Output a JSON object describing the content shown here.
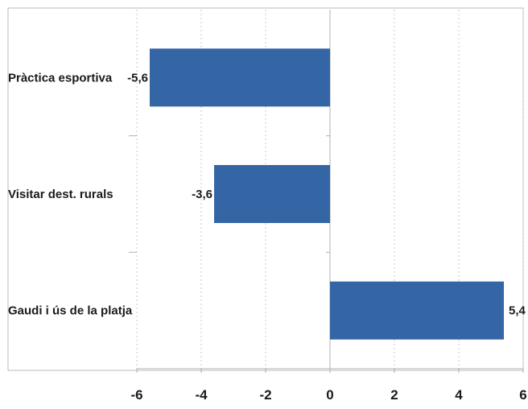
{
  "chart_data": {
    "type": "bar",
    "orientation": "horizontal",
    "categories": [
      "Pràctica esportiva",
      "Visitar dest. rurals",
      "Gaudi i ús de la platja"
    ],
    "values": [
      -5.6,
      -3.6,
      5.4
    ],
    "data_labels": [
      "-5,6",
      "-3,6",
      "5,4"
    ],
    "title": "",
    "xlabel": "",
    "ylabel": "",
    "xlim": [
      -6,
      6
    ],
    "xticks": [
      -6,
      -4,
      -2,
      0,
      2,
      4,
      6
    ],
    "xtick_labels": [
      "-6",
      "-4",
      "-2",
      "0",
      "2",
      "4",
      "6"
    ],
    "grid": "vertical dotted",
    "legend": "none",
    "bar_color": "#3465a4"
  }
}
